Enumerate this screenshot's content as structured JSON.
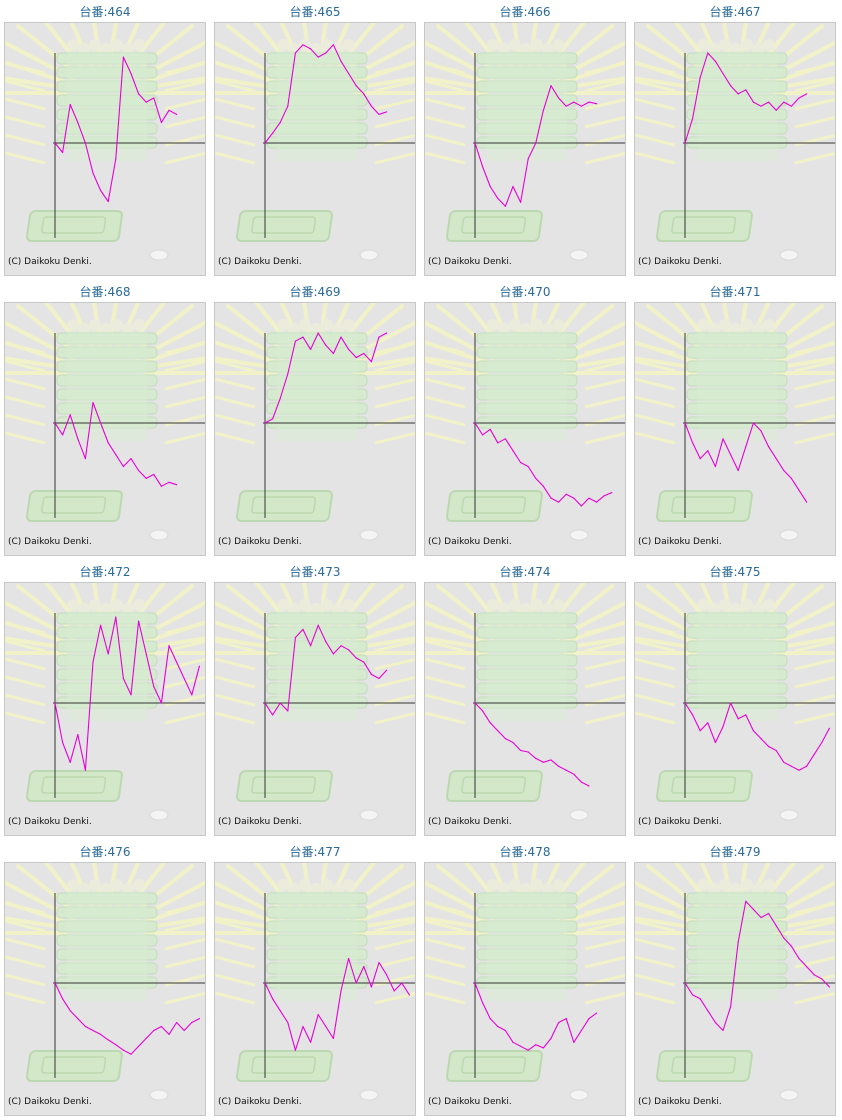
{
  "colors": {
    "line": "#e600d6",
    "axis": "#333333",
    "background": "#e4e4e4",
    "title": "#2a6a9a"
  },
  "chart_data": [
    {
      "type": "line",
      "title": "台番:464",
      "footer": "(C) Daikoku Denki.",
      "x": [
        0,
        1,
        2,
        3,
        4,
        5,
        6,
        7,
        8,
        9,
        10,
        11,
        12,
        13,
        14,
        15,
        16
      ],
      "y": [
        0,
        -0.12,
        0.47,
        0.25,
        0.0,
        -0.38,
        -0.6,
        -0.74,
        -0.2,
        1.05,
        0.85,
        0.6,
        0.5,
        0.55,
        0.25,
        0.4,
        0.35
      ],
      "xlim": [
        0,
        20
      ],
      "ylim": [
        -1.1,
        1.1
      ]
    },
    {
      "type": "line",
      "title": "台番:465",
      "footer": "(C) Daikoku Denki.",
      "x": [
        0,
        1,
        2,
        3,
        4,
        5,
        6,
        7,
        8,
        9,
        10,
        11,
        12,
        13,
        14,
        15,
        16
      ],
      "y": [
        0,
        0.12,
        0.25,
        0.45,
        1.1,
        1.2,
        1.15,
        1.05,
        1.1,
        1.2,
        1.0,
        0.85,
        0.7,
        0.6,
        0.45,
        0.35,
        0.38
      ],
      "xlim": [
        0,
        20
      ],
      "ylim": [
        -1.1,
        1.1
      ]
    },
    {
      "type": "line",
      "title": "台番:466",
      "footer": "(C) Daikoku Denki.",
      "x": [
        0,
        1,
        2,
        3,
        4,
        5,
        6,
        7,
        8,
        9,
        10,
        11,
        12,
        13,
        14,
        15,
        16
      ],
      "y": [
        0,
        -0.3,
        -0.55,
        -0.7,
        -0.8,
        -0.55,
        -0.75,
        -0.2,
        0.0,
        0.4,
        0.7,
        0.55,
        0.45,
        0.5,
        0.45,
        0.5,
        0.48
      ],
      "xlim": [
        0,
        20
      ],
      "ylim": [
        -1.1,
        1.1
      ]
    },
    {
      "type": "line",
      "title": "台番:467",
      "footer": "(C) Daikoku Denki.",
      "x": [
        0,
        1,
        2,
        3,
        4,
        5,
        6,
        7,
        8,
        9,
        10,
        11,
        12,
        13,
        14,
        15,
        16
      ],
      "y": [
        0,
        0.3,
        0.8,
        1.1,
        1.0,
        0.85,
        0.7,
        0.6,
        0.65,
        0.5,
        0.45,
        0.5,
        0.4,
        0.5,
        0.45,
        0.55,
        0.6
      ],
      "xlim": [
        0,
        20
      ],
      "ylim": [
        -1.1,
        1.1
      ]
    },
    {
      "type": "line",
      "title": "台番:468",
      "footer": "(C) Daikoku Denki.",
      "x": [
        0,
        1,
        2,
        3,
        4,
        5,
        6,
        7,
        8,
        9,
        10,
        11,
        12,
        13,
        14,
        15,
        16
      ],
      "y": [
        0,
        -0.15,
        0.1,
        -0.2,
        -0.45,
        0.25,
        0.0,
        -0.25,
        -0.4,
        -0.55,
        -0.45,
        -0.6,
        -0.7,
        -0.65,
        -0.8,
        -0.75,
        -0.78
      ],
      "xlim": [
        0,
        20
      ],
      "ylim": [
        -1.1,
        1.1
      ]
    },
    {
      "type": "line",
      "title": "台番:469",
      "footer": "(C) Daikoku Denki.",
      "x": [
        0,
        1,
        2,
        3,
        4,
        5,
        6,
        7,
        8,
        9,
        10,
        11,
        12,
        13,
        14,
        15,
        16
      ],
      "y": [
        0,
        0.05,
        0.3,
        0.6,
        1.0,
        1.05,
        0.9,
        1.1,
        0.95,
        0.85,
        1.05,
        0.9,
        0.8,
        0.85,
        0.75,
        1.05,
        1.1
      ],
      "xlim": [
        0,
        20
      ],
      "ylim": [
        -1.1,
        1.1
      ]
    },
    {
      "type": "line",
      "title": "台番:470",
      "footer": "(C) Daikoku Denki.",
      "x": [
        0,
        1,
        2,
        3,
        4,
        5,
        6,
        7,
        8,
        9,
        10,
        11,
        12,
        13,
        14,
        15,
        16,
        17,
        18
      ],
      "y": [
        0,
        -0.15,
        -0.08,
        -0.25,
        -0.2,
        -0.35,
        -0.5,
        -0.55,
        -0.7,
        -0.8,
        -0.95,
        -1.0,
        -0.9,
        -0.95,
        -1.05,
        -0.95,
        -1.0,
        -0.92,
        -0.88
      ],
      "xlim": [
        0,
        20
      ],
      "ylim": [
        -1.1,
        1.1
      ]
    },
    {
      "type": "line",
      "title": "台番:471",
      "footer": "(C) Daikoku Denki.",
      "x": [
        0,
        1,
        2,
        3,
        4,
        5,
        6,
        7,
        8,
        9,
        10,
        11,
        12,
        13,
        14,
        15,
        16
      ],
      "y": [
        0,
        -0.25,
        -0.45,
        -0.35,
        -0.55,
        -0.2,
        -0.4,
        -0.6,
        -0.3,
        0.0,
        -0.1,
        -0.3,
        -0.45,
        -0.6,
        -0.7,
        -0.85,
        -1.0
      ],
      "xlim": [
        0,
        20
      ],
      "ylim": [
        -1.1,
        1.1
      ]
    },
    {
      "type": "line",
      "title": "台番:472",
      "footer": "(C) Daikoku Denki.",
      "x": [
        0,
        1,
        2,
        3,
        4,
        5,
        6,
        7,
        8,
        9,
        10,
        11,
        12,
        13,
        14,
        15,
        16,
        17,
        18,
        19
      ],
      "y": [
        0,
        -0.5,
        -0.75,
        -0.4,
        -0.85,
        0.5,
        0.95,
        0.6,
        1.05,
        0.3,
        0.1,
        1.0,
        0.6,
        0.2,
        0.0,
        0.7,
        0.5,
        0.3,
        0.1,
        0.45
      ],
      "xlim": [
        0,
        20
      ],
      "ylim": [
        -1.1,
        1.1
      ]
    },
    {
      "type": "line",
      "title": "台番:473",
      "footer": "(C) Daikoku Denki.",
      "x": [
        0,
        1,
        2,
        3,
        4,
        5,
        6,
        7,
        8,
        9,
        10,
        11,
        12,
        13,
        14,
        15,
        16
      ],
      "y": [
        0,
        -0.15,
        0.0,
        -0.1,
        0.8,
        0.9,
        0.7,
        0.95,
        0.75,
        0.6,
        0.7,
        0.65,
        0.55,
        0.5,
        0.35,
        0.3,
        0.4
      ],
      "xlim": [
        0,
        20
      ],
      "ylim": [
        -1.1,
        1.1
      ]
    },
    {
      "type": "line",
      "title": "台番:474",
      "footer": "(C) Daikoku Denki.",
      "x": [
        0,
        1,
        2,
        3,
        4,
        5,
        6,
        7,
        8,
        9,
        10,
        11,
        12,
        13,
        14,
        15
      ],
      "y": [
        0,
        -0.1,
        -0.25,
        -0.35,
        -0.45,
        -0.5,
        -0.6,
        -0.62,
        -0.7,
        -0.75,
        -0.72,
        -0.8,
        -0.85,
        -0.9,
        -1.0,
        -1.05
      ],
      "xlim": [
        0,
        20
      ],
      "ylim": [
        -1.1,
        1.1
      ]
    },
    {
      "type": "line",
      "title": "台番:475",
      "footer": "(C) Daikoku Denki.",
      "x": [
        0,
        1,
        2,
        3,
        4,
        5,
        6,
        7,
        8,
        9,
        10,
        11,
        12,
        13,
        14,
        15,
        16,
        17,
        18,
        19
      ],
      "y": [
        0,
        -0.15,
        -0.35,
        -0.25,
        -0.5,
        -0.3,
        0.0,
        -0.2,
        -0.15,
        -0.35,
        -0.45,
        -0.55,
        -0.6,
        -0.75,
        -0.8,
        -0.85,
        -0.8,
        -0.65,
        -0.5,
        -0.32
      ],
      "xlim": [
        0,
        20
      ],
      "ylim": [
        -1.1,
        1.1
      ]
    },
    {
      "type": "line",
      "title": "台番:476",
      "footer": "(C) Daikoku Denki.",
      "x": [
        0,
        1,
        2,
        3,
        4,
        5,
        6,
        7,
        8,
        9,
        10,
        11,
        12,
        13,
        14,
        15,
        16,
        17,
        18,
        19
      ],
      "y": [
        0,
        -0.2,
        -0.35,
        -0.45,
        -0.55,
        -0.6,
        -0.65,
        -0.72,
        -0.78,
        -0.85,
        -0.9,
        -0.8,
        -0.7,
        -0.6,
        -0.55,
        -0.65,
        -0.5,
        -0.6,
        -0.5,
        -0.45
      ],
      "xlim": [
        0,
        20
      ],
      "ylim": [
        -1.1,
        1.1
      ]
    },
    {
      "type": "line",
      "title": "台番:477",
      "footer": "(C) Daikoku Denki.",
      "x": [
        0,
        1,
        2,
        3,
        4,
        5,
        6,
        7,
        8,
        9,
        10,
        11,
        12,
        13,
        14,
        15,
        16,
        17,
        18,
        19
      ],
      "y": [
        0,
        -0.2,
        -0.35,
        -0.5,
        -0.85,
        -0.55,
        -0.75,
        -0.4,
        -0.55,
        -0.7,
        -0.1,
        0.3,
        0.0,
        0.2,
        -0.05,
        0.25,
        0.1,
        -0.1,
        0.0,
        -0.15
      ],
      "xlim": [
        0,
        20
      ],
      "ylim": [
        -1.1,
        1.1
      ]
    },
    {
      "type": "line",
      "title": "台番:478",
      "footer": "(C) Daikoku Denki.",
      "x": [
        0,
        1,
        2,
        3,
        4,
        5,
        6,
        7,
        8,
        9,
        10,
        11,
        12,
        13,
        14,
        15,
        16
      ],
      "y": [
        0,
        -0.25,
        -0.45,
        -0.55,
        -0.6,
        -0.75,
        -0.8,
        -0.85,
        -0.78,
        -0.82,
        -0.7,
        -0.5,
        -0.45,
        -0.75,
        -0.6,
        -0.45,
        -0.38
      ],
      "xlim": [
        0,
        20
      ],
      "ylim": [
        -1.1,
        1.1
      ]
    },
    {
      "type": "line",
      "title": "台番:479",
      "footer": "(C) Daikoku Denki.",
      "x": [
        0,
        1,
        2,
        3,
        4,
        5,
        6,
        7,
        8,
        9,
        10,
        11,
        12,
        13,
        14,
        15,
        16,
        17,
        18,
        19
      ],
      "y": [
        0,
        -0.15,
        -0.2,
        -0.35,
        -0.5,
        -0.6,
        -0.3,
        0.5,
        1.0,
        0.9,
        0.8,
        0.85,
        0.7,
        0.55,
        0.45,
        0.3,
        0.2,
        0.1,
        0.05,
        -0.05
      ],
      "xlim": [
        0,
        20
      ],
      "ylim": [
        -1.1,
        1.1
      ]
    }
  ]
}
